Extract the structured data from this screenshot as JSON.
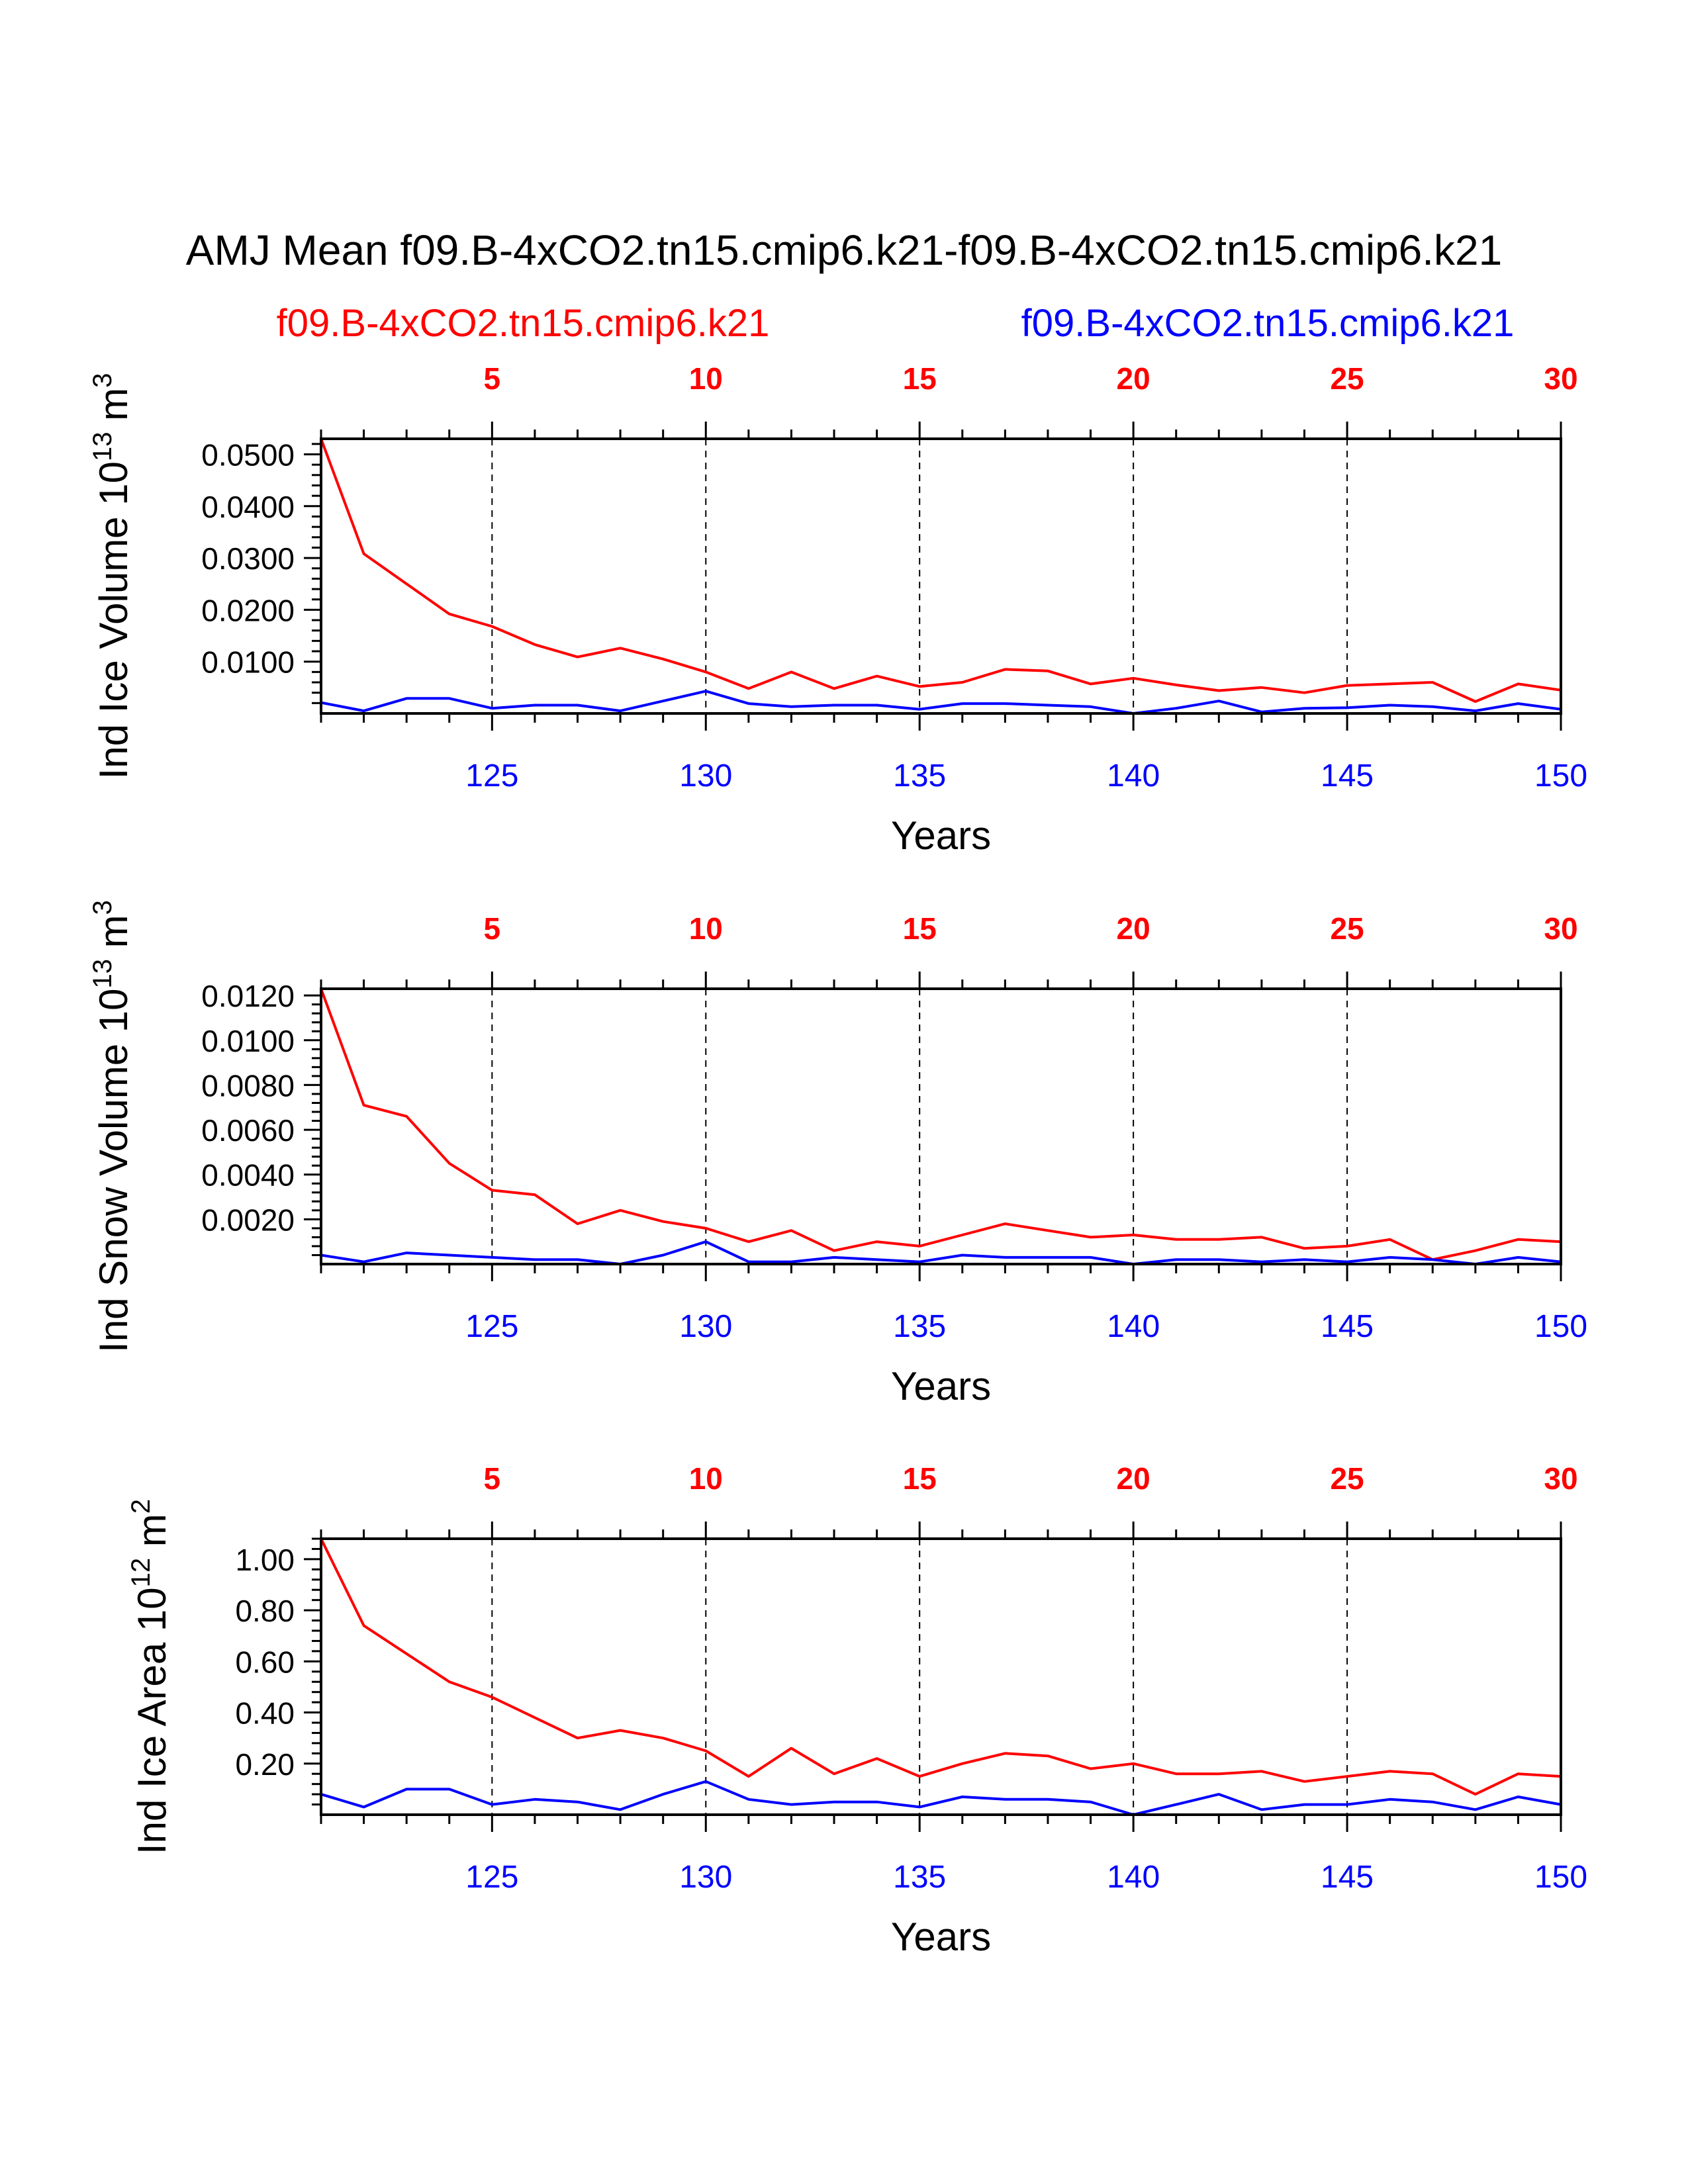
{
  "title": "AMJ Mean f09.B-4xCO2.tn15.cmip6.k21-f09.B-4xCO2.tn15.cmip6.k21",
  "legend": {
    "left_label": "f09.B-4xCO2.tn15.cmip6.k21",
    "right_label": "f09.B-4xCO2.tn15.cmip6.k21",
    "left_color": "#ff0000",
    "right_color": "#0000ff"
  },
  "colors": {
    "red": "#ff0000",
    "blue": "#0000ff",
    "axis": "#000000"
  },
  "chart_data": [
    {
      "type": "line",
      "ylabel": "Ind Ice Volume 10",
      "ylabel_exp": "13",
      "ylabel_unit": " m",
      "ylabel_unit_exp": "3",
      "xlabel": "Years",
      "xlim": [
        121,
        150
      ],
      "ylim": [
        0.0,
        0.053
      ],
      "yticks": [
        0.01,
        0.02,
        0.03,
        0.04,
        0.05
      ],
      "ytick_labels": [
        "0.0100",
        "0.0200",
        "0.0300",
        "0.0400",
        "0.0500"
      ],
      "bottom_ticks": [
        125,
        130,
        135,
        140,
        145,
        150
      ],
      "top_tick_labels": [
        "5",
        "10",
        "15",
        "20",
        "25",
        "30"
      ],
      "x": [
        121,
        122,
        123,
        124,
        125,
        126,
        127,
        128,
        129,
        130,
        131,
        132,
        133,
        134,
        135,
        136,
        137,
        138,
        139,
        140,
        141,
        142,
        143,
        144,
        145,
        146,
        147,
        148,
        149,
        150
      ],
      "series": [
        {
          "name": "f09.B-4xCO2.tn15.cmip6.k21 (red)",
          "color": "#ff0000",
          "values": [
            0.053,
            0.0308,
            0.025,
            0.0192,
            0.0168,
            0.0133,
            0.0109,
            0.0126,
            0.0105,
            0.008,
            0.0048,
            0.008,
            0.0048,
            0.0072,
            0.0052,
            0.006,
            0.0085,
            0.0082,
            0.0057,
            0.0068,
            0.0055,
            0.0044,
            0.005,
            0.004,
            0.0054,
            0.0057,
            0.006,
            0.0023,
            0.0057,
            0.0045
          ]
        },
        {
          "name": "f09.B-4xCO2.tn15.cmip6.k21 (blue)",
          "color": "#0000ff",
          "values": [
            0.0021,
            0.0005,
            0.0029,
            0.0029,
            0.001,
            0.0016,
            0.0016,
            0.0005,
            0.0024,
            0.0043,
            0.0019,
            0.0013,
            0.0016,
            0.0016,
            0.0008,
            0.0019,
            0.0019,
            0.0016,
            0.0013,
            0.0,
            0.001,
            0.0024,
            0.0003,
            0.001,
            0.0011,
            0.0016,
            0.0013,
            0.0005,
            0.0019,
            0.0008
          ]
        }
      ]
    },
    {
      "type": "line",
      "ylabel": "Ind Snow Volume 10",
      "ylabel_exp": "13",
      "ylabel_unit": " m",
      "ylabel_unit_exp": "3",
      "xlabel": "Years",
      "xlim": [
        121,
        150
      ],
      "ylim": [
        0.0,
        0.0123
      ],
      "yticks": [
        0.002,
        0.004,
        0.006,
        0.008,
        0.01,
        0.012
      ],
      "ytick_labels": [
        "0.0020",
        "0.0040",
        "0.0060",
        "0.0080",
        "0.0100",
        "0.0120"
      ],
      "bottom_ticks": [
        125,
        130,
        135,
        140,
        145,
        150
      ],
      "top_tick_labels": [
        "5",
        "10",
        "15",
        "20",
        "25",
        "30"
      ],
      "x": [
        121,
        122,
        123,
        124,
        125,
        126,
        127,
        128,
        129,
        130,
        131,
        132,
        133,
        134,
        135,
        136,
        137,
        138,
        139,
        140,
        141,
        142,
        143,
        144,
        145,
        146,
        147,
        148,
        149,
        150
      ],
      "series": [
        {
          "name": "f09.B-4xCO2.tn15.cmip6.k21 (red)",
          "color": "#ff0000",
          "values": [
            0.0123,
            0.0071,
            0.0066,
            0.0045,
            0.0033,
            0.0031,
            0.0018,
            0.0024,
            0.0019,
            0.0016,
            0.001,
            0.0015,
            0.0006,
            0.001,
            0.0008,
            0.0013,
            0.0018,
            0.0015,
            0.0012,
            0.0013,
            0.0011,
            0.0011,
            0.0012,
            0.0007,
            0.0008,
            0.0011,
            0.0002,
            0.0006,
            0.0011,
            0.001
          ]
        },
        {
          "name": "f09.B-4xCO2.tn15.cmip6.k21 (blue)",
          "color": "#0000ff",
          "values": [
            0.0004,
            0.0001,
            0.0005,
            0.0004,
            0.0003,
            0.0002,
            0.0002,
            0.0,
            0.0004,
            0.001,
            0.0001,
            0.0001,
            0.0003,
            0.0002,
            0.0001,
            0.0004,
            0.0003,
            0.0003,
            0.0003,
            0.0,
            0.0002,
            0.0002,
            0.0001,
            0.0002,
            0.0001,
            0.0003,
            0.0002,
            0.0,
            0.0003,
            0.0001
          ]
        }
      ]
    },
    {
      "type": "line",
      "ylabel": "Ind Ice Area 10",
      "ylabel_exp": "12",
      "ylabel_unit": " m",
      "ylabel_unit_exp": "2",
      "xlabel": "Years",
      "xlim": [
        121,
        150
      ],
      "ylim": [
        0.0,
        1.08
      ],
      "yticks": [
        0.2,
        0.4,
        0.6,
        0.8,
        1.0
      ],
      "ytick_labels": [
        "0.20",
        "0.40",
        "0.60",
        "0.80",
        "1.00"
      ],
      "bottom_ticks": [
        125,
        130,
        135,
        140,
        145,
        150
      ],
      "top_tick_labels": [
        "5",
        "10",
        "15",
        "20",
        "25",
        "30"
      ],
      "x": [
        121,
        122,
        123,
        124,
        125,
        126,
        127,
        128,
        129,
        130,
        131,
        132,
        133,
        134,
        135,
        136,
        137,
        138,
        139,
        140,
        141,
        142,
        143,
        144,
        145,
        146,
        147,
        148,
        149,
        150
      ],
      "series": [
        {
          "name": "f09.B-4xCO2.tn15.cmip6.k21 (red)",
          "color": "#ff0000",
          "values": [
            1.08,
            0.74,
            0.63,
            0.52,
            0.46,
            0.38,
            0.3,
            0.33,
            0.3,
            0.25,
            0.15,
            0.26,
            0.16,
            0.22,
            0.15,
            0.2,
            0.24,
            0.23,
            0.18,
            0.2,
            0.16,
            0.16,
            0.17,
            0.13,
            0.15,
            0.17,
            0.16,
            0.08,
            0.16,
            0.15
          ]
        },
        {
          "name": "f09.B-4xCO2.tn15.cmip6.k21 (blue)",
          "color": "#0000ff",
          "values": [
            0.08,
            0.03,
            0.1,
            0.1,
            0.04,
            0.06,
            0.05,
            0.02,
            0.08,
            0.13,
            0.06,
            0.04,
            0.05,
            0.05,
            0.03,
            0.07,
            0.06,
            0.06,
            0.05,
            0.0,
            0.04,
            0.08,
            0.02,
            0.04,
            0.04,
            0.06,
            0.05,
            0.02,
            0.07,
            0.04
          ]
        }
      ]
    }
  ]
}
